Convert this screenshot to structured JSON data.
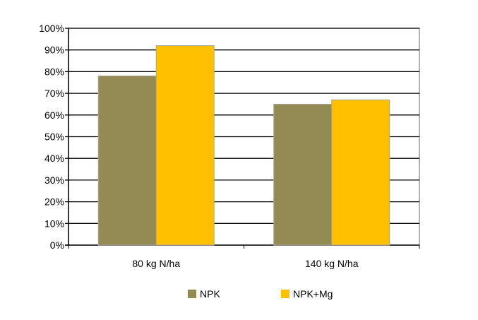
{
  "chart_data": {
    "type": "bar",
    "title": "",
    "xlabel": "",
    "ylabel": "",
    "categories": [
      "80 kg N/ha",
      "140 kg N/ha"
    ],
    "series": [
      {
        "name": "NPK",
        "values": [
          78,
          65
        ],
        "color": "#948A54"
      },
      {
        "name": "NPK+Mg",
        "values": [
          92,
          67
        ],
        "color": "#FFC000"
      }
    ],
    "ylim": [
      0,
      100
    ],
    "yticks": [
      0,
      10,
      20,
      30,
      40,
      50,
      60,
      70,
      80,
      90,
      100
    ],
    "ytick_format": "percent",
    "grid": true,
    "legend": "bottom"
  }
}
